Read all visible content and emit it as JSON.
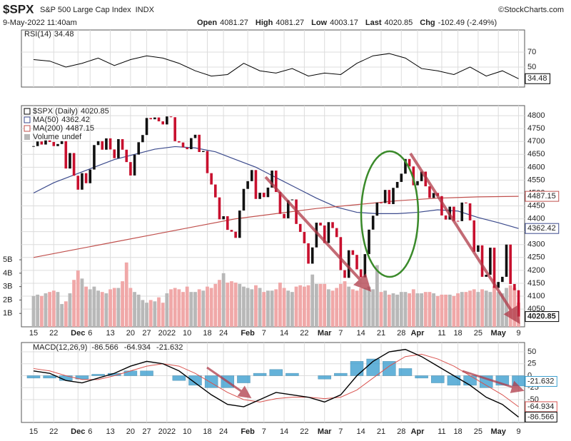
{
  "header": {
    "symbol": "$SPX",
    "name": "S&P 500 Large Cap Index",
    "exchange": "INDX",
    "source": "©StockCharts.com",
    "date": "9-May-2022 11:40am",
    "quote": [
      {
        "label": "Open",
        "value": "4081.27"
      },
      {
        "label": "High",
        "value": "4081.27"
      },
      {
        "label": "Low",
        "value": "4003.17"
      },
      {
        "label": "Last",
        "value": "4020.85"
      },
      {
        "label": "Chg",
        "value": "-102.49 (-2.49%)"
      }
    ]
  },
  "chart_data": [
    {
      "type": "line",
      "title": "RSI(14)",
      "last": 34.48,
      "color": "#000000",
      "x": [
        0,
        4,
        8,
        12,
        16,
        20,
        24,
        28,
        32,
        36,
        40,
        44,
        48,
        52,
        56,
        60,
        64,
        68,
        72,
        76,
        80,
        84,
        88,
        92,
        96,
        100,
        104,
        108,
        112,
        116,
        120
      ],
      "values": [
        60,
        58,
        50,
        55,
        62,
        52,
        60,
        65,
        62,
        55,
        45,
        38,
        40,
        55,
        45,
        42,
        48,
        38,
        42,
        40,
        55,
        65,
        68,
        62,
        48,
        45,
        40,
        50,
        38,
        45,
        34.48
      ],
      "ylim": [
        23.3,
        99.5
      ],
      "yticks": [
        70,
        50
      ],
      "grid": true
    },
    {
      "type": "candlestick",
      "up_color": "#111111",
      "down_color": "#c8102e",
      "volume_up_color": "#b8b8b8",
      "volume_down_color": "#f0a8a8",
      "series": [
        {
          "name": "$SPX (Daily)",
          "last": 4020.85,
          "color": "#000000",
          "values": [
            4682,
            4700,
            4688,
            4704,
            4698,
            4682,
            4690,
            4701,
            4595,
            4655,
            4567,
            4513,
            4577,
            4538,
            4591,
            4686,
            4701,
            4668,
            4712,
            4669,
            4635,
            4709,
            4668,
            4620,
            4568,
            4649,
            4697,
            4725,
            4791,
            4786,
            4793,
            4778,
            4766,
            4797,
            4794,
            4701,
            4696,
            4677,
            4670,
            4713,
            4726,
            4659,
            4663,
            4577,
            4533,
            4483,
            4398,
            4410,
            4357,
            4350,
            4326,
            4432,
            4516,
            4546,
            4589,
            4477,
            4501,
            4484,
            4521,
            4587,
            4504,
            4419,
            4402,
            4472,
            4475,
            4380,
            4349,
            4305,
            4226,
            4289,
            4385,
            4374,
            4306,
            4387,
            4364,
            4329,
            4201,
            4171,
            4278,
            4260,
            4204,
            4173,
            4263,
            4358,
            4412,
            4463,
            4461,
            4512,
            4457,
            4520,
            4543,
            4575,
            4632,
            4603,
            4530,
            4546,
            4583,
            4526,
            4481,
            4500,
            4488,
            4413,
            4397,
            4447,
            4392,
            4391,
            4463,
            4460,
            4394,
            4272,
            4297,
            4175,
            4183,
            4288,
            4132,
            4155,
            4175,
            4300,
            4147,
            4123,
            4020.85
          ]
        },
        {
          "name": "MA(50)",
          "last": 4362.42,
          "color": "#3b4a8c",
          "x": [
            0,
            5,
            10,
            15,
            20,
            25,
            30,
            35,
            40,
            45,
            50,
            55,
            60,
            65,
            70,
            75,
            80,
            85,
            90,
            95,
            100,
            105,
            110,
            115,
            120
          ],
          "values": [
            4500,
            4540,
            4570,
            4600,
            4630,
            4650,
            4670,
            4680,
            4675,
            4660,
            4630,
            4600,
            4560,
            4520,
            4480,
            4445,
            4425,
            4420,
            4420,
            4425,
            4435,
            4430,
            4405,
            4385,
            4362.42
          ]
        },
        {
          "name": "MA(200)",
          "last": 4487.15,
          "color": "#c0504d",
          "x": [
            0,
            10,
            20,
            30,
            40,
            50,
            60,
            70,
            80,
            90,
            100,
            110,
            120
          ],
          "values": [
            4250,
            4280,
            4310,
            4340,
            4370,
            4400,
            4420,
            4440,
            4455,
            4470,
            4480,
            4485,
            4487.15
          ]
        },
        {
          "name": "Volume",
          "last": "undef",
          "axis": "y2",
          "values": [
            2.3,
            2.4,
            2.3,
            2.5,
            2.6,
            2.7,
            2.6,
            1.7,
            1.9,
            2.5,
            3.5,
            4.2,
            3.6,
            3.0,
            2.8,
            3.0,
            2.7,
            2.6,
            2.5,
            2.8,
            2.9,
            2.9,
            3.4,
            4.8,
            2.9,
            2.6,
            2.4,
            2.0,
            1.8,
            2.0,
            1.9,
            2.2,
            1.8,
            2.5,
            2.8,
            2.9,
            2.8,
            2.6,
            3.0,
            2.6,
            2.6,
            2.8,
            2.7,
            3.0,
            2.9,
            3.2,
            3.5,
            4.0,
            3.3,
            3.4,
            3.3,
            3.2,
            3.0,
            2.9,
            2.8,
            3.1,
            2.9,
            2.6,
            2.7,
            2.7,
            2.8,
            3.3,
            2.9,
            2.7,
            2.6,
            3.0,
            3.1,
            3.0,
            3.1,
            3.9,
            3.2,
            3.2,
            3.2,
            2.8,
            2.7,
            2.9,
            3.2,
            3.4,
            3.0,
            2.8,
            2.7,
            2.9,
            2.9,
            3.0,
            2.8,
            4.6,
            2.6,
            2.7,
            2.4,
            2.5,
            2.4,
            2.6,
            2.6,
            2.5,
            2.8,
            2.5,
            2.5,
            2.6,
            2.6,
            2.5,
            2.3,
            2.4,
            2.4,
            2.4,
            2.3,
            2.5,
            2.6,
            2.6,
            2.7,
            2.8,
            2.6,
            2.8,
            2.7,
            2.6,
            3.0,
            2.6,
            2.5,
            2.9,
            3.1,
            2.9,
            1.8
          ]
        }
      ],
      "xlim": [
        -3,
        121.5
      ],
      "xticks": [
        {
          "value": 0,
          "label": "15"
        },
        {
          "value": 5,
          "label": "22"
        },
        {
          "value": 11,
          "label": "Dec"
        },
        {
          "value": 14,
          "label": "6"
        },
        {
          "value": 19,
          "label": "13"
        },
        {
          "value": 24,
          "label": "20"
        },
        {
          "value": 28,
          "label": "27"
        },
        {
          "value": 33,
          "label": "2022"
        },
        {
          "value": 38,
          "label": "10"
        },
        {
          "value": 43,
          "label": "18"
        },
        {
          "value": 47,
          "label": "24"
        },
        {
          "value": 53,
          "label": "Feb"
        },
        {
          "value": 57,
          "label": "7"
        },
        {
          "value": 62,
          "label": "14"
        },
        {
          "value": 67,
          "label": "22"
        },
        {
          "value": 72,
          "label": "Mar"
        },
        {
          "value": 76,
          "label": "7"
        },
        {
          "value": 81,
          "label": "14"
        },
        {
          "value": 86,
          "label": "21"
        },
        {
          "value": 91,
          "label": "28"
        },
        {
          "value": 95,
          "label": "Apr"
        },
        {
          "value": 101,
          "label": "11"
        },
        {
          "value": 105,
          "label": "18"
        },
        {
          "value": 110,
          "label": "25"
        },
        {
          "value": 115,
          "label": "May"
        },
        {
          "value": 120,
          "label": "9"
        }
      ],
      "ylim": [
        3981,
        4839
      ],
      "yticks": [
        4800,
        4750,
        4700,
        4650,
        4600,
        4550,
        4500,
        4450,
        4400,
        4350,
        4300,
        4250,
        4200,
        4150,
        4100,
        4050
      ],
      "y2lim": [
        0,
        16.5
      ],
      "y2ticks": [
        {
          "value": 5,
          "label": "5B"
        },
        {
          "value": 4,
          "label": "4B"
        },
        {
          "value": 3,
          "label": "3B"
        },
        {
          "value": 2,
          "label": "2B"
        },
        {
          "value": 1,
          "label": "1B"
        }
      ],
      "grid": true
    },
    {
      "type": "macd",
      "title": "MACD(12,26,9)",
      "x": [
        0,
        4,
        8,
        12,
        16,
        20,
        24,
        28,
        32,
        36,
        40,
        44,
        48,
        52,
        56,
        60,
        64,
        68,
        72,
        76,
        80,
        84,
        88,
        92,
        96,
        100,
        104,
        108,
        112,
        116,
        120
      ],
      "series": [
        {
          "name": "MACD",
          "color": "#000000",
          "last": -86.566,
          "values": [
            10,
            5,
            -10,
            -15,
            -5,
            5,
            20,
            30,
            25,
            10,
            -15,
            -40,
            -60,
            -65,
            -50,
            -35,
            -40,
            -45,
            -55,
            -40,
            0,
            30,
            50,
            55,
            40,
            20,
            0,
            -20,
            -45,
            -60,
            -86.566
          ]
        },
        {
          "name": "Signal",
          "color": "#d9534f",
          "last": -64.934,
          "values": [
            15,
            10,
            0,
            -8,
            -8,
            0,
            10,
            20,
            25,
            20,
            5,
            -15,
            -35,
            -50,
            -55,
            -48,
            -45,
            -45,
            -48,
            -45,
            -30,
            -5,
            20,
            40,
            45,
            35,
            20,
            0,
            -20,
            -40,
            -64.934
          ]
        },
        {
          "name": "Histogram",
          "color": "#3ea0d0",
          "last": -21.632,
          "values": [
            -5,
            -5,
            -10,
            -7,
            3,
            5,
            10,
            10,
            0,
            -10,
            -20,
            -25,
            -25,
            -15,
            5,
            13,
            5,
            0,
            -7,
            5,
            30,
            35,
            30,
            15,
            -5,
            -15,
            -20,
            -20,
            -25,
            -20,
            -21.632
          ]
        }
      ],
      "ylim": [
        -97.8,
        69.4
      ],
      "yticks": [
        50,
        25,
        0,
        -25,
        -50
      ],
      "grid": true
    }
  ]
}
